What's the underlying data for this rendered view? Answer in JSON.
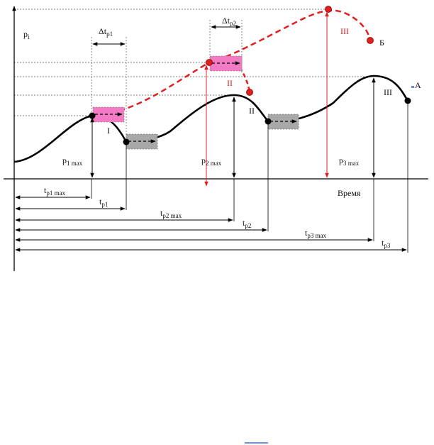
{
  "axis": {
    "y_label": "p",
    "y_label_sub": "i",
    "x_label": "Время"
  },
  "curve_a": {
    "label": "А",
    "segments": [
      "I",
      "II",
      "III"
    ]
  },
  "curve_b": {
    "label": "Б",
    "segments": [
      "II",
      "III"
    ]
  },
  "pressures": {
    "p1": {
      "main": "p",
      "sub": "1 max"
    },
    "p2": {
      "main": "p",
      "sub": "2 max"
    },
    "p3": {
      "main": "p",
      "sub": "3 max"
    }
  },
  "intervals": {
    "dt1": {
      "main": "Δt",
      "sub": "p1"
    },
    "dt2": {
      "main": "Δt",
      "sub": "p2"
    }
  },
  "times": [
    {
      "main": "t",
      "sub": "p1 max"
    },
    {
      "main": "t",
      "sub": "p1"
    },
    {
      "main": "t",
      "sub": "p2 max"
    },
    {
      "main": "t",
      "sub": "p2"
    },
    {
      "main": "t",
      "sub": "p3 max"
    },
    {
      "main": "t",
      "sub": "p3"
    }
  ],
  "colors": {
    "curve_a": "#000000",
    "curve_b": "#e02020",
    "pink_box": "#f27bc4",
    "grey_box": "#a8a8a8"
  }
}
